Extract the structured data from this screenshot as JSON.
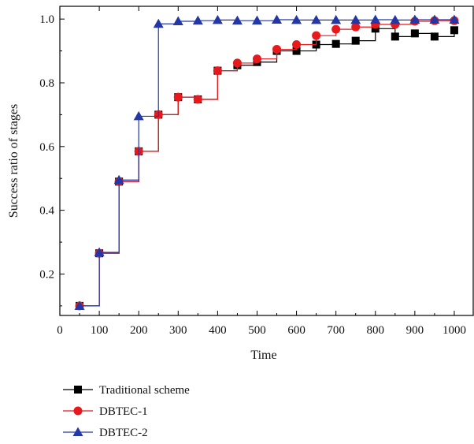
{
  "chart_data": {
    "type": "line",
    "title": "",
    "xlabel": "Time",
    "ylabel": "Success ratio of stages",
    "xlim": [
      0,
      1050
    ],
    "ylim": [
      0.07,
      1.04
    ],
    "xticks": [
      0,
      100,
      200,
      300,
      400,
      500,
      600,
      700,
      800,
      900,
      1000
    ],
    "yticks": [
      0.2,
      0.4,
      0.6,
      0.8,
      1.0
    ],
    "ytick_labels": [
      "0.2",
      "0.4",
      "0.6",
      "0.8",
      "1.0"
    ],
    "grid": false,
    "step": true,
    "legend_position": "bottom-left, below plot",
    "x": [
      50,
      100,
      150,
      200,
      250,
      300,
      350,
      400,
      450,
      500,
      550,
      600,
      650,
      700,
      750,
      800,
      850,
      900,
      950,
      1000
    ],
    "series": [
      {
        "name": "Traditional scheme",
        "color": "#000000",
        "marker": "square",
        "values": [
          0.1,
          0.265,
          0.49,
          0.585,
          0.7,
          0.755,
          0.748,
          0.838,
          0.855,
          0.865,
          0.9,
          0.9,
          0.92,
          0.922,
          0.932,
          0.97,
          0.945,
          0.955,
          0.945,
          0.965
        ]
      },
      {
        "name": "DBTEC-1",
        "color": "#e8191c",
        "marker": "circle",
        "values": [
          0.1,
          0.265,
          0.49,
          0.585,
          0.7,
          0.755,
          0.748,
          0.838,
          0.862,
          0.875,
          0.905,
          0.92,
          0.948,
          0.968,
          0.975,
          0.983,
          0.983,
          0.993,
          0.995,
          0.995
        ]
      },
      {
        "name": "DBTEC-2",
        "color": "#2337a6",
        "marker": "triangle",
        "values": [
          0.1,
          0.268,
          0.495,
          0.695,
          0.985,
          0.993,
          0.995,
          0.997,
          0.995,
          0.995,
          0.998,
          0.997,
          0.997,
          0.997,
          0.997,
          0.998,
          0.997,
          0.998,
          0.998,
          0.998
        ]
      }
    ]
  }
}
